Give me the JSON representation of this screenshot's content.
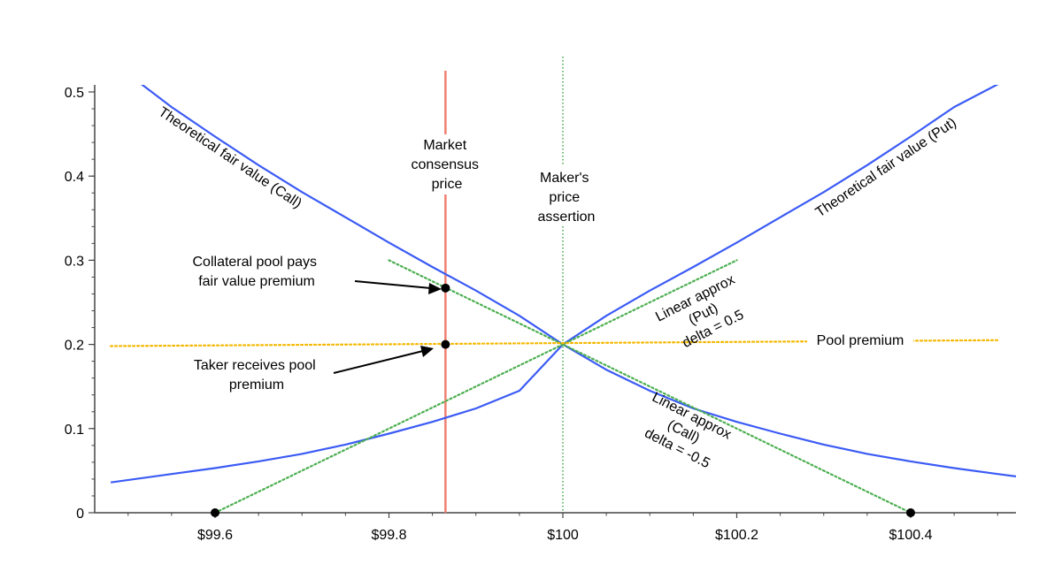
{
  "chart_data": {
    "type": "line",
    "title": "",
    "xlabel": "",
    "ylabel": "",
    "xlim": [
      99.48,
      100.53
    ],
    "ylim": [
      0,
      0.51
    ],
    "grid": false,
    "x_ticks": [
      99.6,
      99.8,
      100,
      100.2,
      100.4
    ],
    "x_tick_labels": [
      "$99.6",
      "$99.8",
      "$100",
      "$100.2",
      "$100.4"
    ],
    "y_ticks": [
      0,
      0.1,
      0.2,
      0.3,
      0.4,
      0.5
    ],
    "y_tick_labels": [
      "0",
      "0.1",
      "0.2",
      "0.3",
      "0.4",
      "0.5"
    ],
    "series": [
      {
        "name": "Theoretical fair value (Call)",
        "style": "solid",
        "color": "#3b5bf5",
        "x": [
          99.48,
          99.55,
          99.6,
          99.65,
          99.7,
          99.75,
          99.8,
          99.85,
          99.9,
          99.95,
          100.0,
          100.05,
          100.1,
          100.15,
          100.2,
          100.25,
          100.3,
          100.35,
          100.4,
          100.45,
          100.5,
          100.53
        ],
        "y": [
          0.537,
          0.482,
          0.447,
          0.413,
          0.381,
          0.351,
          0.321,
          0.292,
          0.264,
          0.234,
          0.2,
          0.17,
          0.145,
          0.124,
          0.108,
          0.094,
          0.081,
          0.07,
          0.061,
          0.053,
          0.046,
          0.042
        ]
      },
      {
        "name": "Theoretical fair value (Put)",
        "style": "solid",
        "color": "#3b5bf5",
        "x": [
          99.48,
          99.55,
          99.6,
          99.65,
          99.7,
          99.75,
          99.8,
          99.85,
          99.9,
          99.95,
          100.0,
          100.05,
          100.1,
          100.15,
          100.2,
          100.25,
          100.3,
          100.35,
          100.4,
          100.45,
          100.5,
          100.53
        ],
        "y": [
          0.036,
          0.046,
          0.053,
          0.061,
          0.07,
          0.081,
          0.094,
          0.108,
          0.124,
          0.145,
          0.2,
          0.234,
          0.264,
          0.292,
          0.321,
          0.351,
          0.381,
          0.413,
          0.447,
          0.482,
          0.509,
          0.537
        ]
      },
      {
        "name": "Linear approx (Call)",
        "style": "dotted",
        "color": "#4caf50",
        "x": [
          99.8,
          100.4
        ],
        "y": [
          0.3,
          0.0
        ]
      },
      {
        "name": "Linear approx (Put)",
        "style": "dotted",
        "color": "#4caf50",
        "x": [
          99.6,
          100.2
        ],
        "y": [
          0.0,
          0.3
        ]
      },
      {
        "name": "Pool premium",
        "style": "dotted",
        "color": "#f5b800",
        "x": [
          99.48,
          100.5
        ],
        "y": [
          0.198,
          0.205
        ]
      }
    ],
    "vertical_lines": [
      {
        "name": "Market consensus price",
        "x": 99.865,
        "style": "solid",
        "color": "#f08070"
      },
      {
        "name": "Maker's price assertion",
        "x": 100.0,
        "style": "dotted",
        "color": "#4caf50"
      }
    ],
    "points": [
      {
        "x": 99.865,
        "y": 0.267
      },
      {
        "x": 99.865,
        "y": 0.2
      },
      {
        "x": 99.6,
        "y": 0.0
      },
      {
        "x": 100.4,
        "y": 0.0
      }
    ],
    "annotations": {
      "call_curve_label": "Theoretical fair value (Call)",
      "put_curve_label": "Theoretical fair value (Put)",
      "market_label": [
        "Market",
        "consensus",
        "price"
      ],
      "maker_label": [
        "Maker's",
        "price",
        "assertion"
      ],
      "collateral_label": [
        "Collateral pool pays",
        "fair value premium"
      ],
      "taker_label": [
        "Taker receives pool",
        "premium"
      ],
      "linear_put_label": [
        "Linear approx",
        "(Put)",
        "delta = 0.5"
      ],
      "linear_call_label": [
        "Linear approx",
        "(Call)",
        "delta = -0.5"
      ],
      "pool_premium_label": "Pool premium"
    }
  }
}
